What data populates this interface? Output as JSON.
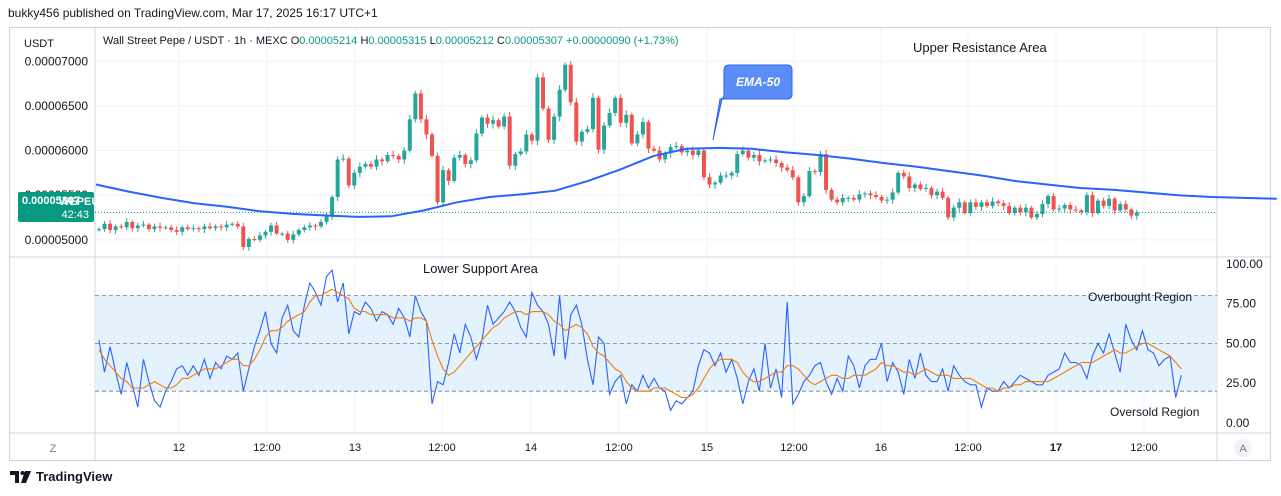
{
  "publisher_line": "bukky456 published on TradingView.com, Mar 17, 2025 16:17 UTC+1",
  "footer_brand": "TradingView",
  "currency": "USDT",
  "legend": {
    "symbol": "Wall Street Pepe / USDT · 1h · MEXC",
    "o_label": "O",
    "o": "0.00005214",
    "h_label": "H",
    "h": "0.00005315",
    "l_label": "L",
    "l": "0.00005212",
    "c_label": "C",
    "c": "0.00005307",
    "change": "+0.00000090 (+1.73%)"
  },
  "price_tag": {
    "value": "0.00005307",
    "ticker": "WEPEUSDT",
    "countdown": "42:43"
  },
  "annotations": {
    "upper": "Upper Resistance Area",
    "lower": "Lower Support Area",
    "ema": "EMA-50",
    "overbought": "Overbought Region",
    "oversold": "Oversold Region"
  },
  "corner_left": "Z",
  "corner_right": "A",
  "colors": {
    "up": "#26a69a",
    "down": "#ef5350",
    "ema": "#2962ff",
    "rsi": "#2962ff",
    "rsi_ma": "#f57c00",
    "band": "#e3f2fd"
  },
  "chart_data": [
    {
      "type": "candlestick",
      "title": "Wall Street Pepe / USDT · 1h · MEXC",
      "y_ticks": [
        "0.00007000",
        "0.00006500",
        "0.00006000",
        "0.00005500",
        "0.00005000"
      ],
      "ylim": [
        4.83e-05,
        7.35e-05
      ],
      "x_ticks": [
        "12",
        "12:00",
        "13",
        "12:00",
        "14",
        "12:00",
        "15",
        "12:00",
        "16",
        "12:00",
        "17",
        "12:00"
      ],
      "candles_step": 2,
      "close": [
        5.12e-05,
        5.18e-05,
        5.11e-05,
        5.15e-05,
        5.14e-05,
        5.2e-05,
        5.13e-05,
        5.16e-05,
        5.17e-05,
        5.12e-05,
        5.15e-05,
        5.135e-05,
        5.14e-05,
        5.11e-05,
        5.09e-05,
        5.14e-05,
        5.12e-05,
        5.13e-05,
        5.12e-05,
        5.15e-05,
        5.13e-05,
        5.15e-05,
        5.14e-05,
        5.17e-05,
        5.18e-05,
        5.15e-05,
        4.92e-05,
        5.01e-05,
        5e-05,
        5.05e-05,
        5.09e-05,
        5.16e-05,
        5.07e-05,
        5.07e-05,
        5e-05,
        5.06e-05,
        5.11e-05,
        5.14e-05,
        5.16e-05,
        5.15e-05,
        5.2e-05,
        5.26e-05,
        5.48e-05,
        5.9e-05,
        5.91e-05,
        5.61e-05,
        5.75e-05,
        5.82e-05,
        5.85e-05,
        5.82e-05,
        5.9e-05,
        5.88e-05,
        5.95e-05,
        5.94e-05,
        5.9e-05,
        6e-05,
        6.35e-05,
        6.64e-05,
        6.35e-05,
        6.18e-05,
        5.94e-05,
        5.42e-05,
        5.78e-05,
        5.66e-05,
        5.92e-05,
        5.95e-05,
        5.85e-05,
        5.89e-05,
        6.19e-05,
        6.37e-05,
        6.3e-05,
        6.34e-05,
        6.27e-05,
        6.38e-05,
        5.83e-05,
        5.96e-05,
        5.99e-05,
        6.18e-05,
        6.11e-05,
        6.82e-05,
        6.47e-05,
        6.12e-05,
        6.38e-05,
        6.68e-05,
        6.96e-05,
        6.54e-05,
        6.1e-05,
        6.21e-05,
        6.24e-05,
        6.59e-05,
        6.01e-05,
        6.28e-05,
        6.42e-05,
        6.59e-05,
        6.31e-05,
        6.4e-05,
        6.08e-05,
        6.18e-05,
        6.32e-05,
        6.02e-05,
        6e-05,
        5.9e-05,
        5.97e-05,
        6.04e-05,
        6.05e-05,
        5.98e-05,
        6e-05,
        5.95e-05,
        6e-05,
        5.7e-05,
        5.62e-05,
        5.64e-05,
        5.72e-05,
        5.72e-05,
        5.75e-05,
        5.96e-05,
        6e-05,
        5.92e-05,
        5.95e-05,
        5.88e-05,
        5.89e-05,
        5.9e-05,
        5.86e-05,
        5.81e-05,
        5.78e-05,
        5.7e-05,
        5.42e-05,
        5.49e-05,
        5.77e-05,
        5.76e-05,
        5.96e-05,
        5.56e-05,
        5.45e-05,
        5.42e-05,
        5.47e-05,
        5.47e-05,
        5.45e-05,
        5.51e-05,
        5.52e-05,
        5.5e-05,
        5.48e-05,
        5.44e-05,
        5.45e-05,
        5.53e-05,
        5.75e-05,
        5.71e-05,
        5.58e-05,
        5.62e-05,
        5.57e-05,
        5.58e-05,
        5.5e-05,
        5.54e-05,
        5.47e-05,
        5.25e-05,
        5.36e-05,
        5.42e-05,
        5.3e-05,
        5.42e-05,
        5.37e-05,
        5.42e-05,
        5.38e-05,
        5.43e-05,
        5.41e-05,
        5.38e-05,
        5.3e-05,
        5.36e-05,
        5.31e-05,
        5.36e-05,
        5.25e-05,
        5.29e-05,
        5.4e-05,
        5.49e-05,
        5.34e-05,
        5.35e-05,
        5.39e-05,
        5.34e-05,
        5.33e-05,
        5.31e-05,
        5.5e-05,
        5.3e-05,
        5.44e-05,
        5.38e-05,
        5.46e-05,
        5.33e-05,
        5.4e-05,
        5.34e-05,
        5.27e-05,
        5.307e-05
      ],
      "ema_50": [
        5.62e-05,
        5.54e-05,
        5.47e-05,
        5.41e-05,
        5.37e-05,
        5.32e-05,
        5.29e-05,
        5.272e-05,
        5.257e-05,
        5.263e-05,
        5.33e-05,
        5.42e-05,
        5.48e-05,
        5.51e-05,
        5.55e-05,
        5.66e-05,
        5.79e-05,
        5.94e-05,
        6.02e-05,
        6.03e-05,
        6.02e-05,
        5.98e-05,
        5.95e-05,
        5.91e-05,
        5.86e-05,
        5.82e-05,
        5.77e-05,
        5.72e-05,
        5.66e-05,
        5.62e-05,
        5.58e-05,
        5.56e-05,
        5.53e-05,
        5.5e-05,
        5.48e-05,
        5.47e-05,
        5.46e-05
      ],
      "ema_50_x_ticks_hours": [
        0,
        6,
        12,
        18,
        24,
        30,
        36,
        42,
        48,
        54,
        60,
        66,
        72,
        78,
        84,
        90,
        96,
        102,
        108,
        114,
        120,
        126,
        132,
        138,
        144,
        150,
        156,
        162,
        168,
        174,
        180,
        186,
        192,
        198,
        204,
        210,
        216
      ]
    },
    {
      "type": "line",
      "title": "RSI",
      "y_ticks": [
        "100.00",
        "75.00",
        "50.00",
        "25.00",
        "0.00"
      ],
      "ylim": [
        -5,
        103
      ],
      "band": [
        20,
        80
      ],
      "midline": 50,
      "series": [
        {
          "name": "RSI",
          "values": [
            52,
            32,
            48,
            32,
            18,
            38,
            24,
            10,
            40,
            26,
            14,
            10,
            20,
            26,
            34,
            36,
            30,
            36,
            30,
            40,
            28,
            38,
            34,
            42,
            40,
            44,
            20,
            34,
            48,
            58,
            70,
            50,
            44,
            66,
            74,
            58,
            54,
            74,
            88,
            82,
            74,
            92,
            96,
            76,
            88,
            56,
            70,
            68,
            76,
            72,
            64,
            70,
            68,
            62,
            72,
            66,
            54,
            80,
            70,
            64,
            12,
            26,
            24,
            38,
            56,
            44,
            62,
            54,
            40,
            52,
            74,
            62,
            66,
            70,
            76,
            70,
            60,
            54,
            82,
            74,
            70,
            62,
            42,
            80,
            40,
            68,
            74,
            62,
            40,
            24,
            54,
            50,
            18,
            26,
            30,
            12,
            24,
            20,
            30,
            22,
            28,
            22,
            20,
            8,
            14,
            12,
            16,
            20,
            36,
            46,
            44,
            36,
            44,
            32,
            40,
            28,
            12,
            26,
            34,
            20,
            50,
            22,
            34,
            16,
            76,
            12,
            18,
            26,
            30,
            36,
            38,
            26,
            18,
            28,
            20,
            42,
            36,
            22,
            36,
            40,
            40,
            50,
            26,
            38,
            32,
            18,
            40,
            28,
            44,
            30,
            26,
            26,
            34,
            20,
            36,
            30,
            26,
            24,
            24,
            10,
            22,
            20,
            20,
            26,
            22,
            26,
            30,
            28,
            26,
            24,
            24,
            30,
            32,
            34,
            44,
            38,
            38,
            36,
            28,
            42,
            50,
            44,
            56,
            44,
            32,
            62,
            52,
            46,
            58,
            46,
            44,
            36,
            40,
            42,
            16,
            30
          ]
        },
        {
          "name": "RSI-based MA",
          "values": [
            46,
            40,
            36,
            32,
            28,
            26,
            22,
            22,
            22,
            24,
            26,
            24,
            22,
            22,
            24,
            28,
            28,
            30,
            32,
            34,
            34,
            34,
            36,
            38,
            40,
            40,
            36,
            36,
            40,
            46,
            54,
            58,
            58,
            60,
            64,
            66,
            68,
            70,
            76,
            80,
            80,
            82,
            84,
            82,
            80,
            78,
            72,
            70,
            70,
            68,
            68,
            68,
            68,
            66,
            66,
            66,
            64,
            66,
            66,
            64,
            52,
            42,
            34,
            30,
            32,
            36,
            40,
            44,
            48,
            52,
            56,
            60,
            62,
            66,
            68,
            70,
            70,
            68,
            70,
            70,
            70,
            68,
            64,
            62,
            58,
            60,
            62,
            60,
            56,
            48,
            44,
            42,
            38,
            34,
            32,
            26,
            22,
            20,
            20,
            20,
            22,
            22,
            22,
            20,
            18,
            16,
            16,
            18,
            22,
            28,
            34,
            38,
            40,
            40,
            40,
            38,
            32,
            28,
            26,
            26,
            28,
            30,
            32,
            32,
            36,
            36,
            34,
            30,
            26,
            24,
            26,
            28,
            30,
            30,
            28,
            28,
            30,
            30,
            30,
            32,
            34,
            38,
            36,
            36,
            34,
            32,
            32,
            30,
            32,
            34,
            32,
            30,
            30,
            30,
            28,
            28,
            28,
            28,
            26,
            24,
            22,
            22,
            20,
            22,
            22,
            24,
            24,
            26,
            26,
            26,
            26,
            26,
            28,
            30,
            32,
            34,
            36,
            38,
            38,
            38,
            40,
            42,
            44,
            46,
            44,
            44,
            46,
            48,
            50,
            50,
            48,
            46,
            44,
            42,
            38,
            34
          ]
        }
      ]
    }
  ]
}
